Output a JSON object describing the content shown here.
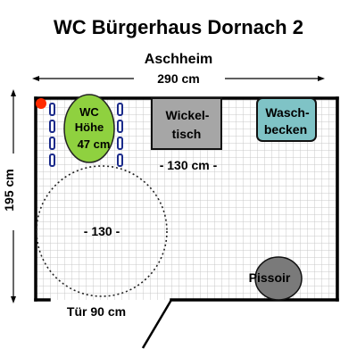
{
  "title": "WC Bürgerhaus Dornach 2",
  "subtitle": "Aschheim",
  "dimensions": {
    "width_label": "290 cm",
    "height_label": "195 cm",
    "door_label": "Tür 90 cm",
    "table_clearance_label": "- 130 cm -",
    "turning_circle_label": "- 130 -"
  },
  "fixtures": {
    "wc_label_1": "WC",
    "wc_label_2": "Höhe",
    "wc_label_3": "47 cm",
    "changing_table_label_1": "Wickel-",
    "changing_table_label_2": "tisch",
    "sink_label_1": "Wasch-",
    "sink_label_2": "becken",
    "urinal_label": "Pissoir"
  },
  "colors": {
    "wall": "#000000",
    "wc": "#8fd13f",
    "changing_table": "#a6a6a6",
    "sink": "#7fc3c6",
    "urinal": "#7a7a7a",
    "grab_bar": "#1a2a8a",
    "emergency_button": "#ff2a00",
    "floor_grid": "#c8c8c8"
  }
}
